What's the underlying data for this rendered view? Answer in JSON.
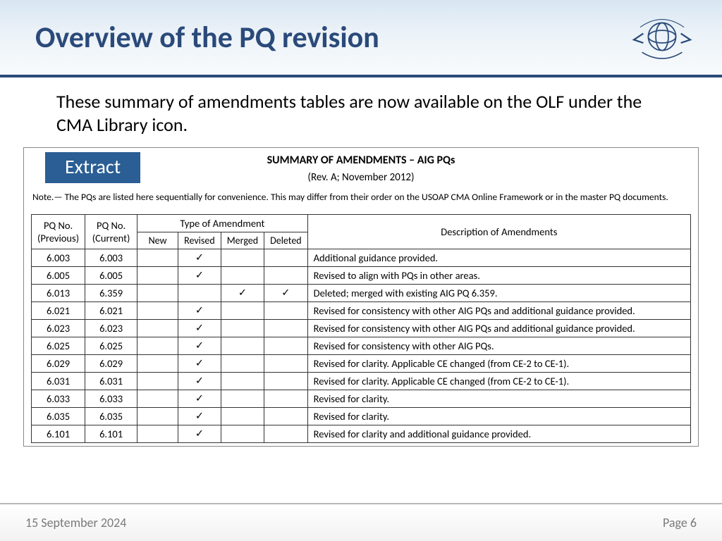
{
  "title": "Overview of the PQ revision",
  "intro": "These summary of amendments tables are now available on the OLF under the CMA Library icon.",
  "extract_label": "Extract",
  "doc": {
    "title": "SUMMARY OF AMENDMENTS – AIG PQs",
    "subtitle": "(Rev. A; November 2012)",
    "note": "Note.— The PQs are listed here sequentially for convenience. This may differ from their order on the USOAP CMA Online Framework or in the master PQ documents."
  },
  "table": {
    "headers": {
      "pq_prev": "PQ No. (Previous)",
      "pq_curr": "PQ No. (Current)",
      "type_group": "Type of Amendment",
      "new": "New",
      "revised": "Revised",
      "merged": "Merged",
      "deleted": "Deleted",
      "desc": "Description of Amendments"
    },
    "check_glyph": "✓",
    "rows": [
      {
        "prev": "6.003",
        "curr": "6.003",
        "new": false,
        "revised": true,
        "merged": false,
        "deleted": false,
        "desc": "Additional guidance provided."
      },
      {
        "prev": "6.005",
        "curr": "6.005",
        "new": false,
        "revised": true,
        "merged": false,
        "deleted": false,
        "desc": "Revised to align with PQs in other areas."
      },
      {
        "prev": "6.013",
        "curr": "6.359",
        "new": false,
        "revised": false,
        "merged": true,
        "deleted": true,
        "desc": "Deleted; merged with existing AIG PQ 6.359."
      },
      {
        "prev": "6.021",
        "curr": "6.021",
        "new": false,
        "revised": true,
        "merged": false,
        "deleted": false,
        "desc": "Revised for consistency with other AIG PQs and additional guidance provided."
      },
      {
        "prev": "6.023",
        "curr": "6.023",
        "new": false,
        "revised": true,
        "merged": false,
        "deleted": false,
        "desc": "Revised for consistency with other AIG PQs and additional guidance provided."
      },
      {
        "prev": "6.025",
        "curr": "6.025",
        "new": false,
        "revised": true,
        "merged": false,
        "deleted": false,
        "desc": "Revised for consistency with other AIG PQs."
      },
      {
        "prev": "6.029",
        "curr": "6.029",
        "new": false,
        "revised": true,
        "merged": false,
        "deleted": false,
        "desc": "Revised for clarity. Applicable CE changed (from CE-2 to CE-1)."
      },
      {
        "prev": "6.031",
        "curr": "6.031",
        "new": false,
        "revised": true,
        "merged": false,
        "deleted": false,
        "desc": "Revised for clarity. Applicable CE changed (from CE-2 to CE-1)."
      },
      {
        "prev": "6.033",
        "curr": "6.033",
        "new": false,
        "revised": true,
        "merged": false,
        "deleted": false,
        "desc": "Revised for clarity."
      },
      {
        "prev": "6.035",
        "curr": "6.035",
        "new": false,
        "revised": true,
        "merged": false,
        "deleted": false,
        "desc": "Revised for clarity."
      },
      {
        "prev": "6.101",
        "curr": "6.101",
        "new": false,
        "revised": true,
        "merged": false,
        "deleted": false,
        "desc": "Revised for clarity and additional guidance provided."
      }
    ]
  },
  "footer": {
    "date": "15 September 2024",
    "page": "Page 6"
  },
  "colors": {
    "title": "#2a4a7a",
    "header_border": "#2a4a7a",
    "badge_bg": "#2a5e94",
    "table_border": "#333333"
  }
}
